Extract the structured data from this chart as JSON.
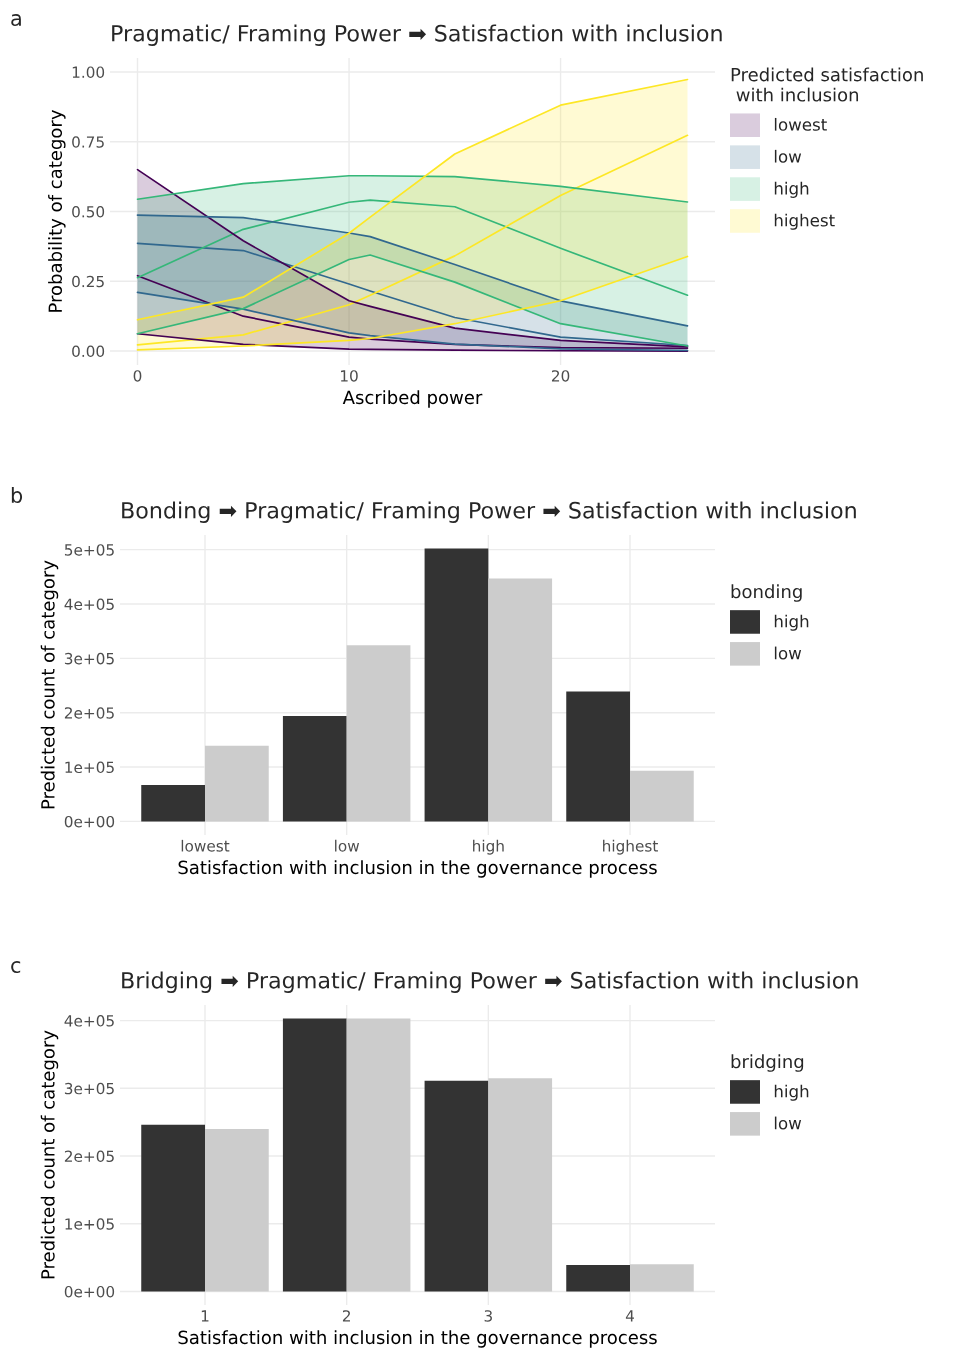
{
  "chart_data": [
    {
      "type": "line",
      "title": "Pragmatic/ Framing Power ➡ Satisfaction with inclusion",
      "xlabel": "Ascribed power",
      "ylabel": "Probability of category",
      "legend_title": "Predicted satisfaction\n with inclusion",
      "annotations": [
        "a"
      ],
      "x": [
        0,
        5,
        10,
        11,
        15,
        20,
        26
      ],
      "series": [
        {
          "name": "lowest",
          "color": "#440154",
          "values": [
            0.27,
            0.125,
            0.05,
            0.043,
            0.024,
            0.012,
            0.01
          ],
          "lower": [
            0.062,
            0.024,
            0.007,
            0.006,
            0.003,
            0.001,
            0.0
          ],
          "upper": [
            0.65,
            0.395,
            0.18,
            0.16,
            0.082,
            0.038,
            0.015
          ]
        },
        {
          "name": "low",
          "color": "#31688e",
          "values": [
            0.386,
            0.36,
            0.24,
            0.215,
            0.12,
            0.05,
            0.02
          ],
          "lower": [
            0.21,
            0.15,
            0.065,
            0.055,
            0.025,
            0.008,
            0.002
          ],
          "upper": [
            0.487,
            0.478,
            0.423,
            0.41,
            0.31,
            0.18,
            0.09
          ]
        },
        {
          "name": "high",
          "color": "#35b779",
          "values": [
            0.263,
            0.436,
            0.533,
            0.541,
            0.517,
            0.368,
            0.2
          ],
          "lower": [
            0.062,
            0.152,
            0.328,
            0.344,
            0.247,
            0.098,
            0.018
          ],
          "upper": [
            0.544,
            0.6,
            0.628,
            0.628,
            0.625,
            0.59,
            0.534
          ]
        },
        {
          "name": "highest",
          "color": "#fde725",
          "values": [
            0.022,
            0.058,
            0.166,
            0.2,
            0.341,
            0.557,
            0.773
          ],
          "lower": [
            0.004,
            0.018,
            0.038,
            0.045,
            0.098,
            0.18,
            0.339
          ],
          "upper": [
            0.112,
            0.193,
            0.422,
            0.48,
            0.706,
            0.881,
            0.973
          ]
        },
        {
          "color": "#440154",
          "values": [
            0.062,
            0.024,
            0.007,
            0.006,
            0.003,
            0.001,
            0.0
          ]
        },
        {
          "color": "#440154",
          "values": [
            0.65,
            0.395,
            0.18,
            0.16,
            0.082,
            0.038,
            0.015
          ]
        },
        {
          "color": "#31688e",
          "values": [
            0.21,
            0.15,
            0.065,
            0.055,
            0.025,
            0.008,
            0.002
          ]
        },
        {
          "color": "#31688e",
          "values": [
            0.487,
            0.478,
            0.423,
            0.41,
            0.31,
            0.18,
            0.09
          ]
        },
        {
          "color": "#35b779",
          "values": [
            0.062,
            0.152,
            0.328,
            0.344,
            0.247,
            0.098,
            0.018
          ]
        },
        {
          "color": "#35b779",
          "values": [
            0.544,
            0.6,
            0.628,
            0.628,
            0.625,
            0.59,
            0.534
          ]
        },
        {
          "color": "#fde725",
          "values": [
            0.004,
            0.018,
            0.038,
            0.045,
            0.098,
            0.18,
            0.339
          ]
        },
        {
          "color": "#fde725",
          "values": [
            0.112,
            0.193,
            0.422,
            0.48,
            0.706,
            0.881,
            0.973
          ]
        }
      ],
      "xlim": [
        -1.3,
        27.3
      ],
      "ylim": [
        -0.05,
        1.05
      ],
      "xticks": [
        0,
        10,
        20
      ],
      "yticks": [
        {
          "value": 0,
          "label": "0.00"
        },
        {
          "value": 0.25,
          "label": "0.25"
        },
        {
          "value": 0.5,
          "label": "0.50"
        },
        {
          "value": 0.75,
          "label": "0.75"
        },
        {
          "value": 1,
          "label": "1.00"
        }
      ],
      "grid": true,
      "legend": "right"
    },
    {
      "type": "bar",
      "title": "Bonding ➡ Pragmatic/ Framing Power ➡ Satisfaction with inclusion",
      "xlabel": "Satisfaction with inclusion in the governance process",
      "ylabel": "Predicted count of category",
      "legend_title": "bonding",
      "annotations": [
        "b"
      ],
      "categories": [
        "lowest",
        "low",
        "high",
        "highest"
      ],
      "series": [
        {
          "name": "high",
          "color": "#333333",
          "values": [
            67000,
            194000,
            502000,
            239000
          ]
        },
        {
          "name": "low",
          "color": "#cccccc",
          "values": [
            139000,
            324000,
            447000,
            93000
          ]
        }
      ],
      "ylim": [
        -25000,
        527000
      ],
      "yticks": [
        {
          "value": 0,
          "label": "0e+00"
        },
        {
          "value": 100000,
          "label": "1e+05"
        },
        {
          "value": 200000,
          "label": "2e+05"
        },
        {
          "value": 300000,
          "label": "3e+05"
        },
        {
          "value": 400000,
          "label": "4e+05"
        },
        {
          "value": 500000,
          "label": "5e+05"
        }
      ],
      "grid": true,
      "legend": "right"
    },
    {
      "type": "bar",
      "title": "Bridging ➡ Pragmatic/ Framing Power ➡ Satisfaction with inclusion",
      "xlabel": "Satisfaction with inclusion in the governance process",
      "ylabel": "Predicted count of category",
      "legend_title": "bridging",
      "annotations": [
        "c"
      ],
      "categories": [
        "1",
        "2",
        "3",
        "4"
      ],
      "series": [
        {
          "name": "high",
          "color": "#333333",
          "values": [
            246000,
            403000,
            311000,
            39000
          ]
        },
        {
          "name": "low",
          "color": "#cccccc",
          "values": [
            240000,
            403000,
            315000,
            40000
          ]
        }
      ],
      "ylim": [
        -20000,
        423000
      ],
      "yticks": [
        {
          "value": 0,
          "label": "0e+00"
        },
        {
          "value": 100000,
          "label": "1e+05"
        },
        {
          "value": 200000,
          "label": "2e+05"
        },
        {
          "value": 300000,
          "label": "3e+05"
        },
        {
          "value": 400000,
          "label": "4e+05"
        }
      ],
      "grid": true,
      "legend": "right"
    }
  ]
}
